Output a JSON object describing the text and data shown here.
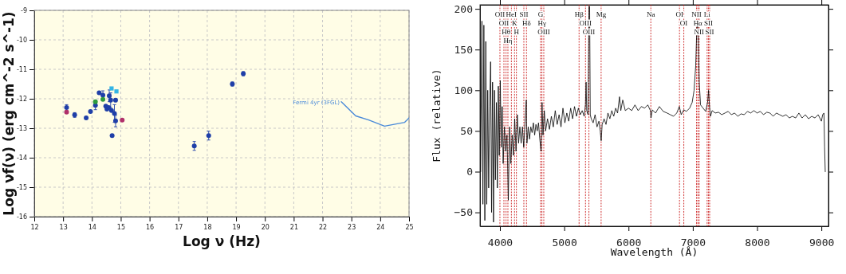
{
  "chart_data": [
    {
      "type": "scatter",
      "xlabel": "Log ν (Hz)",
      "ylabel": "Log νf(ν) (erg cm^-2 s^-1)",
      "xlim": [
        12,
        25
      ],
      "ylim": [
        -16,
        -9
      ],
      "xticks": [
        12,
        13,
        14,
        15,
        16,
        17,
        18,
        19,
        20,
        21,
        22,
        23,
        24,
        25
      ],
      "yticks": [
        -16,
        -15,
        -14,
        -13,
        -12,
        -11,
        -10,
        -9
      ],
      "grid": true,
      "marker": "circle",
      "series": [
        {
          "color": "#1f3fa8",
          "x": [
            13.12,
            13.4,
            13.8,
            13.95,
            14.12,
            14.25,
            14.38,
            14.48,
            14.52,
            14.58,
            14.6,
            14.65,
            14.68,
            14.7,
            14.78,
            14.82,
            14.82,
            17.55,
            18.05,
            18.87,
            19.25
          ],
          "values": [
            -12.3,
            -12.55,
            -12.65,
            -12.43,
            -12.22,
            -11.8,
            -11.88,
            -12.25,
            -12.35,
            -12.3,
            -11.9,
            -12.05,
            -12.4,
            -13.25,
            -12.5,
            -12.75,
            -12.05,
            -13.6,
            -13.25,
            -11.5,
            -11.15
          ],
          "errors": [
            0.1,
            0.08,
            null,
            null,
            0.15,
            null,
            0.15,
            null,
            null,
            null,
            0.2,
            0.25,
            null,
            null,
            0.3,
            0.2,
            0.05,
            0.15,
            0.15,
            0.07,
            0.07
          ]
        },
        {
          "color": "#b0306a",
          "x": [
            13.12,
            15.05
          ],
          "values": [
            -12.45,
            -12.72
          ]
        },
        {
          "color": "#2e9b3e",
          "x": [
            14.38,
            14.12
          ],
          "values": [
            -12.02,
            -12.1
          ]
        },
        {
          "color": "#33b5e5",
          "marker": "square",
          "x": [
            14.68,
            14.85
          ],
          "values": [
            -11.65,
            -11.75
          ]
        },
        {
          "type": "line",
          "name": "Fermi 4yr (3FGL)",
          "color": "#4a8ad9",
          "marker": "none",
          "x": [
            22.65,
            23.15,
            23.6,
            24.15,
            24.85,
            25.0
          ],
          "values": [
            -12.1,
            -12.58,
            -12.72,
            -12.93,
            -12.8,
            -12.65
          ]
        }
      ]
    },
    {
      "type": "line",
      "xlabel": "Wavelength (Å)",
      "ylabel": "Flux (relative)",
      "xlim": [
        3690,
        9110
      ],
      "ylim": [
        -67,
        205
      ],
      "xticks": [
        4000,
        5000,
        6000,
        7000,
        8000,
        9000
      ],
      "yticks": [
        -50,
        0,
        50,
        100,
        150,
        200
      ],
      "grid": false,
      "series": [
        {
          "color": "#000000",
          "x": [
            3700,
            3720,
            3735,
            3750,
            3765,
            3780,
            3795,
            3810,
            3825,
            3840,
            3855,
            3870,
            3885,
            3900,
            3915,
            3930,
            3945,
            3960,
            3975,
            3990,
            4005,
            4020,
            4035,
            4050,
            4070,
            4090,
            4110,
            4130,
            4150,
            4170,
            4190,
            4210,
            4230,
            4250,
            4270,
            4290,
            4310,
            4330,
            4350,
            4370,
            4390,
            4410,
            4420,
            4440,
            4460,
            4480,
            4500,
            4520,
            4540,
            4560,
            4580,
            4600,
            4620,
            4640,
            4655,
            4670,
            4690,
            4710,
            4740,
            4770,
            4800,
            4830,
            4860,
            4890,
            4920,
            4950,
            4980,
            5010,
            5040,
            5070,
            5100,
            5130,
            5160,
            5190,
            5220,
            5250,
            5280,
            5310,
            5330,
            5340,
            5350,
            5370,
            5385,
            5395,
            5405,
            5420,
            5450,
            5480,
            5510,
            5540,
            5560,
            5575,
            5590,
            5620,
            5650,
            5680,
            5710,
            5740,
            5770,
            5800,
            5830,
            5860,
            5880,
            5910,
            5950,
            6000,
            6050,
            6100,
            6150,
            6200,
            6250,
            6300,
            6340,
            6350,
            6370,
            6420,
            6480,
            6540,
            6600,
            6650,
            6700,
            6750,
            6790,
            6820,
            6860,
            6900,
            6950,
            6990,
            7020,
            7045,
            7060,
            7070,
            7085,
            7100,
            7120,
            7160,
            7200,
            7230,
            7245,
            7260,
            7275,
            7300,
            7350,
            7400,
            7450,
            7500,
            7550,
            7600,
            7650,
            7700,
            7750,
            7800,
            7850,
            7900,
            7950,
            8000,
            8050,
            8100,
            8150,
            8200,
            8250,
            8300,
            8350,
            8400,
            8450,
            8500,
            8550,
            8600,
            8650,
            8700,
            8750,
            8800,
            8850,
            8900,
            8950,
            9000,
            9020,
            9040,
            9050,
            9060
          ],
          "values": [
            0,
            185,
            -40,
            180,
            -60,
            160,
            -40,
            100,
            -20,
            80,
            135,
            -50,
            110,
            -62,
            100,
            -10,
            85,
            -20,
            105,
            20,
            112,
            30,
            80,
            10,
            55,
            25,
            45,
            -35,
            55,
            10,
            45,
            20,
            65,
            25,
            70,
            35,
            55,
            35,
            55,
            30,
            60,
            88,
            35,
            55,
            40,
            55,
            48,
            60,
            45,
            58,
            50,
            60,
            40,
            25,
            85,
            45,
            75,
            50,
            65,
            52,
            68,
            55,
            75,
            58,
            70,
            55,
            78,
            60,
            72,
            62,
            78,
            65,
            80,
            68,
            78,
            70,
            75,
            68,
            82,
            110,
            75,
            70,
            203,
            203,
            70,
            65,
            60,
            70,
            55,
            62,
            50,
            38,
            58,
            65,
            58,
            72,
            65,
            75,
            68,
            78,
            72,
            92,
            75,
            88,
            75,
            78,
            75,
            82,
            75,
            80,
            78,
            82,
            75,
            66,
            76,
            72,
            80,
            74,
            72,
            70,
            68,
            72,
            80,
            70,
            76,
            74,
            78,
            85,
            100,
            130,
            170,
            185,
            165,
            110,
            82,
            78,
            74,
            85,
            100,
            80,
            68,
            75,
            72,
            73,
            70,
            72,
            74,
            70,
            72,
            68,
            71,
            70,
            74,
            72,
            75,
            72,
            74,
            70,
            73,
            72,
            68,
            72,
            70,
            68,
            70,
            66,
            68,
            66,
            72,
            66,
            70,
            65,
            68,
            66,
            70,
            62,
            70,
            72,
            30,
            0
          ]
        }
      ],
      "ref_lines": [
        {
          "axis": "x",
          "value": 4000,
          "label": "OII",
          "color": "#cc2222",
          "line_style": "dotted"
        },
        {
          "axis": "x",
          "value": 4062,
          "label": "OII",
          "color": "#cc2222",
          "line_style": "dotted"
        },
        {
          "axis": "x",
          "value": 4095,
          "label": "Hθ",
          "color": "#cc2222",
          "line_style": "dotted"
        },
        {
          "axis": "x",
          "value": 4124,
          "label": "Hη",
          "color": "#cc2222",
          "line_style": "dotted"
        },
        {
          "axis": "x",
          "value": 4178,
          "label": "HeI",
          "color": "#cc2222",
          "line_style": "dotted"
        },
        {
          "axis": "x",
          "value": 4227,
          "label": "K",
          "color": "#cc2222",
          "line_style": "dotted"
        },
        {
          "axis": "x",
          "value": 4256,
          "label": "H",
          "color": "#cc2222",
          "line_style": "dotted"
        },
        {
          "axis": "x",
          "value": 4372,
          "label": "SII",
          "color": "#cc2222",
          "line_style": "dotted"
        },
        {
          "axis": "x",
          "value": 4413,
          "label": "Hδ",
          "color": "#cc2222",
          "line_style": "dotted"
        },
        {
          "axis": "x",
          "value": 4632,
          "label": "G",
          "color": "#cc2222",
          "line_style": "dotted"
        },
        {
          "axis": "x",
          "value": 4653,
          "label": "Hγ",
          "color": "#cc2222",
          "line_style": "dotted"
        },
        {
          "axis": "x",
          "value": 4682,
          "label": "OIII",
          "color": "#cc2222",
          "line_style": "dotted"
        },
        {
          "axis": "x",
          "value": 5231,
          "label": "Hβ",
          "color": "#cc2222",
          "line_style": "dotted"
        },
        {
          "axis": "x",
          "value": 5331,
          "label": "OIII",
          "color": "#cc2222",
          "line_style": "dotted"
        },
        {
          "axis": "x",
          "value": 5384,
          "label": "OIII",
          "color": "#cc2222",
          "line_style": "dotted"
        },
        {
          "axis": "x",
          "value": 5574,
          "label": "Mg",
          "color": "#cc2222",
          "line_style": "dotted"
        },
        {
          "axis": "x",
          "value": 6347,
          "label": "Na",
          "color": "#cc2222",
          "line_style": "dotted"
        },
        {
          "axis": "x",
          "value": 6793,
          "label": "OI",
          "color": "#cc2222",
          "line_style": "dotted"
        },
        {
          "axis": "x",
          "value": 6860,
          "label": "OI",
          "color": "#cc2222",
          "line_style": "dotted"
        },
        {
          "axis": "x",
          "value": 7058,
          "label": "NII",
          "color": "#cc2222",
          "line_style": "dotted"
        },
        {
          "axis": "x",
          "value": 7079,
          "label": "Hα",
          "color": "#cc2222",
          "line_style": "dotted"
        },
        {
          "axis": "x",
          "value": 7099,
          "label": "NII",
          "color": "#cc2222",
          "line_style": "dotted"
        },
        {
          "axis": "x",
          "value": 7223,
          "label": "Li",
          "color": "#cc2222",
          "line_style": "dotted"
        },
        {
          "axis": "x",
          "value": 7244,
          "label": "SII",
          "color": "#cc2222",
          "line_style": "dotted"
        },
        {
          "axis": "x",
          "value": 7262,
          "label": "SII",
          "color": "#cc2222",
          "line_style": "dotted"
        }
      ]
    }
  ]
}
